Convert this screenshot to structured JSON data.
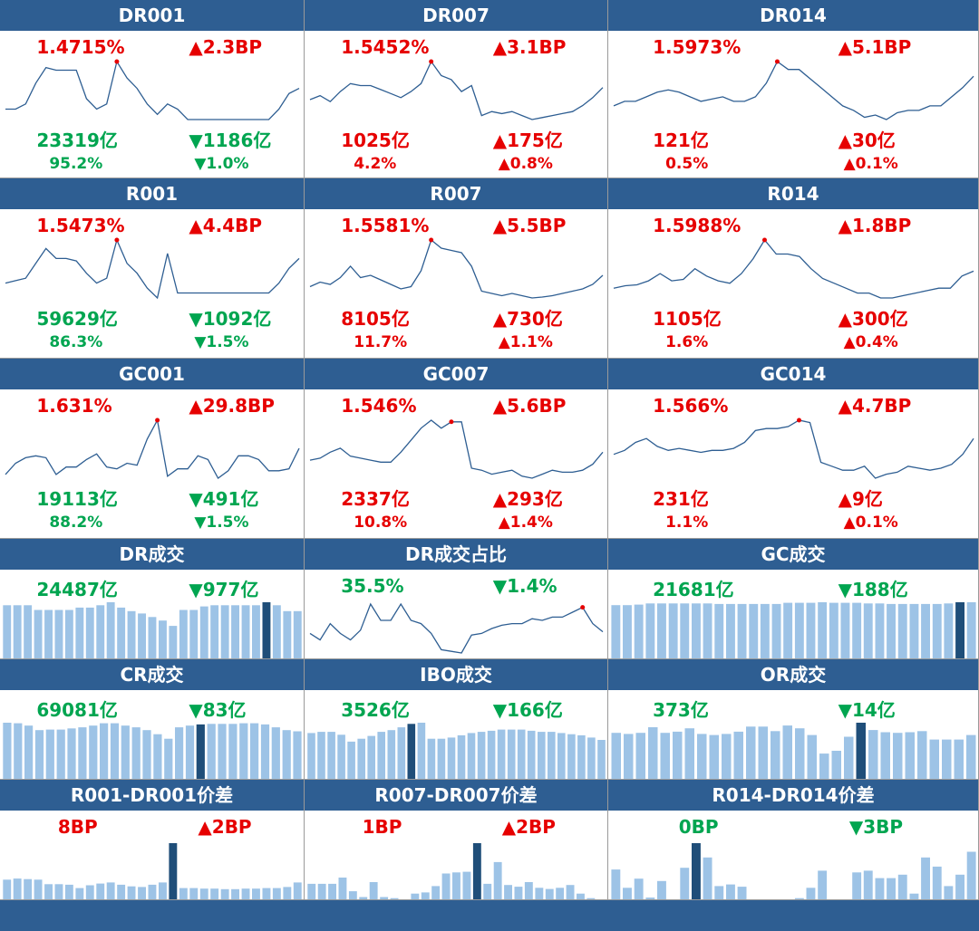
{
  "colors": {
    "header": "#2e5e92",
    "up": "#e60000",
    "down": "#00a550",
    "line": "#2e5e92",
    "bar": "#9dc3e6",
    "bar_hi": "#1f4e79",
    "peak": "#e60000"
  },
  "rate_panels": [
    {
      "title": "DR001",
      "rate": "1.4715%",
      "rate_dir": "up",
      "rate_chg": "▲2.3BP",
      "vol": "23319亿",
      "vol_dir": "down",
      "vol_chg": "▼1186亿",
      "share": "95.2%",
      "share_dir": "down",
      "share_chg": "▼1.0%",
      "chart_data": {
        "type": "line",
        "values": [
          1.38,
          1.38,
          1.39,
          1.43,
          1.46,
          1.455,
          1.455,
          1.455,
          1.4,
          1.38,
          1.39,
          1.4715,
          1.44,
          1.42,
          1.39,
          1.37,
          1.39,
          1.38,
          1.36,
          1.36,
          1.36,
          1.36,
          1.36,
          1.36,
          1.36,
          1.36,
          1.36,
          1.38,
          1.41,
          1.42
        ],
        "peak_index": 11
      }
    },
    {
      "title": "DR007",
      "rate": "1.5452%",
      "rate_dir": "up",
      "rate_chg": "▲3.1BP",
      "vol": "1025亿",
      "vol_dir": "up",
      "vol_chg": "▲175亿",
      "share": "4.2%",
      "share_dir": "up",
      "share_chg": "▲0.8%",
      "chart_data": {
        "type": "line",
        "values": [
          1.45,
          1.46,
          1.445,
          1.47,
          1.49,
          1.485,
          1.485,
          1.475,
          1.465,
          1.455,
          1.47,
          1.49,
          1.5452,
          1.51,
          1.5,
          1.47,
          1.485,
          1.41,
          1.42,
          1.415,
          1.42,
          1.41,
          1.4,
          1.405,
          1.41,
          1.415,
          1.42,
          1.435,
          1.455,
          1.48
        ],
        "peak_index": 12
      }
    },
    {
      "title": "DR014",
      "rate": "1.5973%",
      "rate_dir": "up",
      "rate_chg": "▲5.1BP",
      "vol": "121亿",
      "vol_dir": "up",
      "vol_chg": "▲30亿",
      "share": "0.5%",
      "share_dir": "up",
      "share_chg": "▲0.1%",
      "chart_data": {
        "type": "line",
        "values": [
          1.5,
          1.51,
          1.51,
          1.52,
          1.53,
          1.535,
          1.53,
          1.52,
          1.51,
          1.515,
          1.52,
          1.51,
          1.51,
          1.52,
          1.55,
          1.5973,
          1.58,
          1.58,
          1.56,
          1.54,
          1.52,
          1.5,
          1.49,
          1.475,
          1.48,
          1.47,
          1.485,
          1.49,
          1.49,
          1.5,
          1.5,
          1.52,
          1.54,
          1.565
        ],
        "peak_index": 15
      }
    },
    {
      "title": "R001",
      "rate": "1.5473%",
      "rate_dir": "up",
      "rate_chg": "▲4.4BP",
      "vol": "59629亿",
      "vol_dir": "down",
      "vol_chg": "▼1092亿",
      "share": "86.3%",
      "share_dir": "down",
      "share_chg": "▼1.5%",
      "chart_data": {
        "type": "line",
        "values": [
          1.46,
          1.465,
          1.47,
          1.5,
          1.53,
          1.51,
          1.51,
          1.505,
          1.48,
          1.46,
          1.47,
          1.5473,
          1.5,
          1.48,
          1.45,
          1.43,
          1.52,
          1.44,
          1.44,
          1.44,
          1.44,
          1.44,
          1.44,
          1.44,
          1.44,
          1.44,
          1.44,
          1.46,
          1.49,
          1.51
        ],
        "peak_index": 11
      }
    },
    {
      "title": "R007",
      "rate": "1.5581%",
      "rate_dir": "up",
      "rate_chg": "▲5.5BP",
      "vol": "8105亿",
      "vol_dir": "up",
      "vol_chg": "▲730亿",
      "share": "11.7%",
      "share_dir": "up",
      "share_chg": "▲1.1%",
      "chart_data": {
        "type": "line",
        "values": [
          1.455,
          1.465,
          1.46,
          1.475,
          1.5,
          1.475,
          1.48,
          1.47,
          1.46,
          1.45,
          1.455,
          1.49,
          1.5581,
          1.54,
          1.535,
          1.53,
          1.5,
          1.445,
          1.44,
          1.435,
          1.44,
          1.435,
          1.43,
          1.432,
          1.435,
          1.44,
          1.445,
          1.45,
          1.46,
          1.48
        ],
        "peak_index": 12
      }
    },
    {
      "title": "R014",
      "rate": "1.5988%",
      "rate_dir": "up",
      "rate_chg": "▲1.8BP",
      "vol": "1105亿",
      "vol_dir": "up",
      "vol_chg": "▲300亿",
      "share": "1.6%",
      "share_dir": "up",
      "share_chg": "▲0.4%",
      "chart_data": {
        "type": "line",
        "values": [
          1.5,
          1.505,
          1.507,
          1.515,
          1.53,
          1.515,
          1.518,
          1.54,
          1.525,
          1.515,
          1.51,
          1.53,
          1.56,
          1.5988,
          1.57,
          1.57,
          1.565,
          1.54,
          1.52,
          1.51,
          1.5,
          1.49,
          1.49,
          1.48,
          1.48,
          1.485,
          1.49,
          1.495,
          1.5,
          1.5,
          1.525,
          1.535
        ],
        "peak_index": 13
      }
    },
    {
      "title": "GC001",
      "rate": "1.631%",
      "rate_dir": "up",
      "rate_chg": "▲29.8BP",
      "vol": "19113亿",
      "vol_dir": "down",
      "vol_chg": "▼491亿",
      "share": "88.2%",
      "share_dir": "down",
      "share_chg": "▼1.5%",
      "chart_data": {
        "type": "line",
        "values": [
          1.34,
          1.4,
          1.43,
          1.44,
          1.43,
          1.34,
          1.38,
          1.38,
          1.42,
          1.45,
          1.38,
          1.37,
          1.4,
          1.39,
          1.53,
          1.631,
          1.33,
          1.37,
          1.37,
          1.44,
          1.42,
          1.32,
          1.36,
          1.44,
          1.44,
          1.42,
          1.36,
          1.36,
          1.37,
          1.48
        ],
        "peak_index": 15
      }
    },
    {
      "title": "GC007",
      "rate": "1.546%",
      "rate_dir": "up",
      "rate_chg": "▲5.6BP",
      "vol": "2337亿",
      "vol_dir": "up",
      "vol_chg": "▲293亿",
      "share": "10.8%",
      "share_dir": "up",
      "share_chg": "▲1.4%",
      "chart_data": {
        "type": "line",
        "values": [
          1.45,
          1.455,
          1.47,
          1.48,
          1.46,
          1.455,
          1.45,
          1.445,
          1.445,
          1.47,
          1.5,
          1.53,
          1.55,
          1.53,
          1.546,
          1.546,
          1.43,
          1.425,
          1.415,
          1.42,
          1.425,
          1.41,
          1.405,
          1.415,
          1.425,
          1.42,
          1.42,
          1.425,
          1.44,
          1.47
        ],
        "peak_index": 14
      }
    },
    {
      "title": "GC014",
      "rate": "1.566%",
      "rate_dir": "up",
      "rate_chg": "▲4.7BP",
      "vol": "231亿",
      "vol_dir": "up",
      "vol_chg": "▲9亿",
      "share": "1.1%",
      "share_dir": "up",
      "share_chg": "▲0.1%",
      "chart_data": {
        "type": "line",
        "values": [
          1.48,
          1.49,
          1.51,
          1.52,
          1.5,
          1.49,
          1.495,
          1.49,
          1.485,
          1.49,
          1.49,
          1.495,
          1.51,
          1.54,
          1.545,
          1.545,
          1.55,
          1.566,
          1.56,
          1.46,
          1.45,
          1.44,
          1.44,
          1.45,
          1.42,
          1.43,
          1.435,
          1.45,
          1.445,
          1.44,
          1.445,
          1.455,
          1.48,
          1.52
        ],
        "peak_index": 17
      }
    }
  ],
  "volume_panels": [
    {
      "title": "DR成交",
      "vol": "24487亿",
      "vol_dir": "down",
      "vol_chg": "▼977亿",
      "chart_data": {
        "type": "bar",
        "values": [
          0.9,
          0.9,
          0.9,
          0.82,
          0.82,
          0.82,
          0.82,
          0.86,
          0.86,
          0.9,
          0.95,
          0.86,
          0.8,
          0.76,
          0.7,
          0.64,
          0.55,
          0.82,
          0.82,
          0.88,
          0.9,
          0.9,
          0.9,
          0.9,
          0.9,
          0.95,
          0.9,
          0.8,
          0.8
        ],
        "highlight_index": 25
      }
    },
    {
      "title": "DR成交占比",
      "vol": "35.5%",
      "vol_dir": "down",
      "vol_chg": "▼1.4%",
      "chart_data": {
        "type": "line",
        "values": [
          0.33,
          0.31,
          0.36,
          0.33,
          0.31,
          0.34,
          0.42,
          0.37,
          0.37,
          0.42,
          0.37,
          0.36,
          0.33,
          0.28,
          0.275,
          0.27,
          0.325,
          0.33,
          0.345,
          0.355,
          0.36,
          0.36,
          0.375,
          0.37,
          0.38,
          0.38,
          0.395,
          0.41,
          0.36,
          0.335
        ],
        "peak_index": 27
      }
    },
    {
      "title": "GC成交",
      "vol": "21681亿",
      "vol_dir": "down",
      "vol_chg": "▼188亿",
      "chart_data": {
        "type": "bar",
        "values": [
          0.92,
          0.92,
          0.93,
          0.95,
          0.95,
          0.95,
          0.95,
          0.95,
          0.95,
          0.94,
          0.94,
          0.94,
          0.94,
          0.94,
          0.94,
          0.96,
          0.96,
          0.96,
          0.97,
          0.96,
          0.96,
          0.96,
          0.95,
          0.95,
          0.94,
          0.94,
          0.94,
          0.94,
          0.94,
          0.95,
          0.97,
          0.97
        ],
        "highlight_index": 30
      }
    },
    {
      "title": "CR成交",
      "vol": "69081亿",
      "vol_dir": "down",
      "vol_chg": "▼83亿",
      "chart_data": {
        "type": "bar",
        "values": [
          0.98,
          0.97,
          0.93,
          0.85,
          0.86,
          0.86,
          0.88,
          0.9,
          0.93,
          0.97,
          0.97,
          0.93,
          0.9,
          0.85,
          0.78,
          0.7,
          0.9,
          0.93,
          0.95,
          0.96,
          0.96,
          0.96,
          0.97,
          0.97,
          0.95,
          0.9,
          0.85,
          0.83
        ],
        "highlight_index": 18
      }
    },
    {
      "title": "IBO成交",
      "vol": "3526亿",
      "vol_dir": "down",
      "vol_chg": "▼166亿",
      "chart_data": {
        "type": "bar",
        "values": [
          0.8,
          0.82,
          0.82,
          0.77,
          0.65,
          0.7,
          0.75,
          0.82,
          0.85,
          0.9,
          0.96,
          0.98,
          0.7,
          0.7,
          0.72,
          0.76,
          0.8,
          0.82,
          0.84,
          0.86,
          0.86,
          0.86,
          0.84,
          0.82,
          0.82,
          0.8,
          0.78,
          0.76,
          0.72,
          0.68
        ],
        "highlight_index": 10
      }
    },
    {
      "title": "OR成交",
      "vol": "373亿",
      "vol_dir": "down",
      "vol_chg": "▼14亿",
      "chart_data": {
        "type": "bar",
        "values": [
          0.82,
          0.8,
          0.82,
          0.92,
          0.82,
          0.84,
          0.9,
          0.8,
          0.78,
          0.8,
          0.84,
          0.93,
          0.93,
          0.85,
          0.95,
          0.9,
          0.78,
          0.45,
          0.5,
          0.75,
          1.0,
          0.87,
          0.83,
          0.82,
          0.83,
          0.85,
          0.7,
          0.7,
          0.7,
          0.78
        ],
        "highlight_index": 20
      }
    }
  ],
  "spread_panels": [
    {
      "title": "R001-DR001价差",
      "val": "8BP",
      "val_dir": "up",
      "val_chg": "▲2BP",
      "chart_data": {
        "type": "bar",
        "values": [
          0.35,
          0.37,
          0.36,
          0.35,
          0.27,
          0.27,
          0.26,
          0.2,
          0.25,
          0.28,
          0.3,
          0.26,
          0.23,
          0.22,
          0.26,
          0.3,
          1.0,
          0.2,
          0.2,
          0.19,
          0.19,
          0.18,
          0.18,
          0.19,
          0.19,
          0.2,
          0.2,
          0.22,
          0.3
        ],
        "highlight_index": 16
      }
    },
    {
      "title": "R007-DR007价差",
      "val": "1BP",
      "val_dir": "up",
      "val_chg": "▲2BP",
      "chart_data": {
        "type": "bar",
        "values": [
          0.27,
          0.27,
          0.27,
          0.38,
          0.14,
          0.04,
          0.3,
          0.04,
          0.02,
          0.0,
          0.1,
          0.12,
          0.23,
          0.45,
          0.47,
          0.48,
          0.98,
          0.27,
          0.65,
          0.25,
          0.22,
          0.3,
          0.2,
          0.18,
          0.2,
          0.25,
          0.1,
          0.02,
          0.0
        ],
        "highlight_index": 16
      }
    },
    {
      "title": "R014-DR014价差",
      "val": "0BP",
      "val_dir": "down",
      "val_chg": "▼3BP",
      "chart_data": {
        "type": "bar",
        "values": [
          0.52,
          0.2,
          0.36,
          0.03,
          0.32,
          0.0,
          0.55,
          0.98,
          0.73,
          0.23,
          0.26,
          0.22,
          0.0,
          0.0,
          0.0,
          0.0,
          0.02,
          0.2,
          0.5,
          0.0,
          0.0,
          0.47,
          0.5,
          0.37,
          0.37,
          0.43,
          0.1,
          0.73,
          0.57,
          0.23,
          0.43,
          0.83
        ],
        "highlight_index": 7
      }
    }
  ]
}
